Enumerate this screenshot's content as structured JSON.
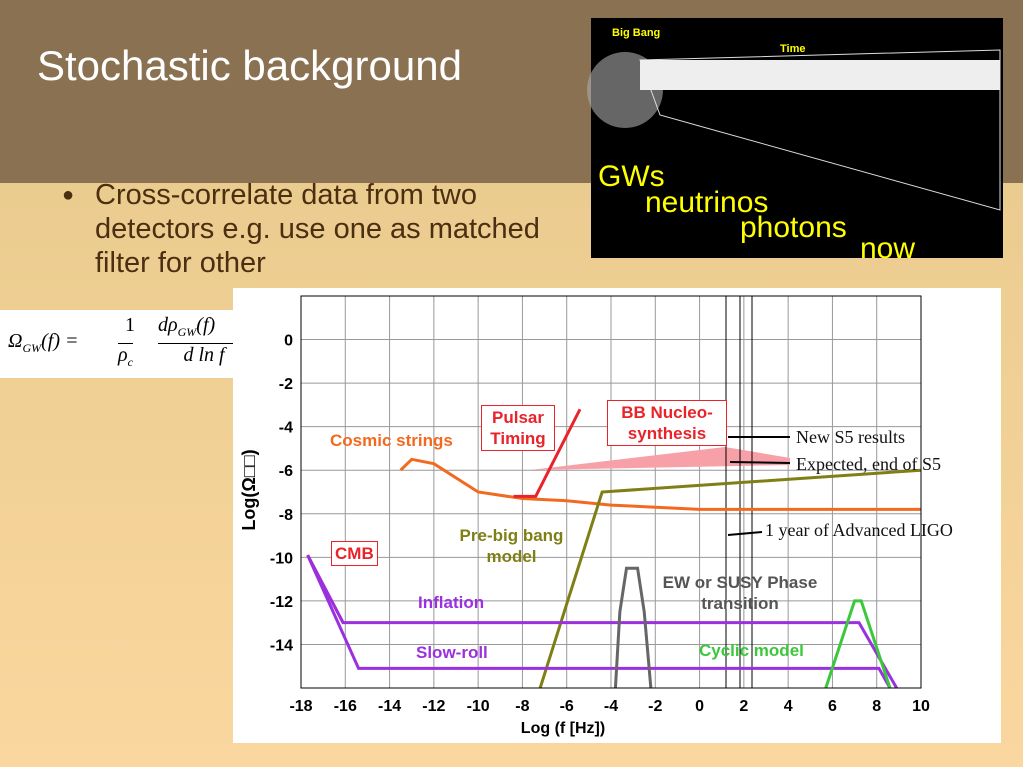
{
  "slide": {
    "title": "Stochastic background",
    "bullet": "Cross-correlate data from two detectors e.g. use one as matched filter for other"
  },
  "figure": {
    "big_bang": "Big Bang",
    "time": "Time",
    "labels": [
      "GWs",
      "neutrinos",
      "photons",
      "now"
    ]
  },
  "chart_data": {
    "type": "line",
    "xlabel": "Log (f [Hz])",
    "ylabel": "Log(Ω□□)",
    "xlim": [
      -18,
      10
    ],
    "ylim": [
      -16,
      2
    ],
    "xticks": [
      -18,
      -16,
      -14,
      -12,
      -10,
      -8,
      -6,
      -4,
      -2,
      0,
      2,
      4,
      6,
      8,
      10
    ],
    "yticks": [
      0,
      -2,
      -4,
      -6,
      -8,
      -10,
      -12,
      -14
    ],
    "grid": true,
    "series": [
      {
        "name": "Cosmic strings",
        "color": "#f26a1f",
        "x": [
          -13.5,
          -13,
          -12,
          -10,
          -8,
          -6,
          -4,
          0,
          10
        ],
        "values": [
          -6,
          -5.5,
          -5.7,
          -7,
          -7.3,
          -7.4,
          -7.6,
          -7.8,
          -7.8
        ]
      },
      {
        "name": "Pulsar Timing",
        "color": "#e8232a",
        "x": [
          -8.4,
          -7.4,
          -5.4
        ],
        "values": [
          -7.2,
          -7.2,
          -3.2
        ]
      },
      {
        "name": "Pre-big bang model",
        "color": "#7f7f16",
        "x": [
          -7.2,
          -4.4,
          10
        ],
        "values": [
          -16,
          -7,
          -6
        ]
      },
      {
        "name": "CMB",
        "color": "#e8232a",
        "x": [
          -17.7,
          -16.1
        ],
        "values": [
          -9.9,
          -13
        ]
      },
      {
        "name": "Inflation",
        "color": "#9b30e0",
        "x": [
          -17.7,
          -16.1,
          7.2,
          8.9
        ],
        "values": [
          -9.9,
          -13,
          -13,
          -16
        ]
      },
      {
        "name": "Slow-roll",
        "color": "#9b30e0",
        "x": [
          -17.7,
          -15.4,
          8.1,
          8.6
        ],
        "values": [
          -9.9,
          -15.1,
          -15.1,
          -16
        ]
      },
      {
        "name": "EW or SUSY Phase transition",
        "color": "#666666",
        "x": [
          -3.8,
          -3.6,
          -3.3,
          -2.8,
          -2.5,
          -2.2
        ],
        "values": [
          -16,
          -12.5,
          -10.5,
          -10.5,
          -12.5,
          -16
        ]
      },
      {
        "name": "Cyclic model",
        "color": "#3cc83c",
        "x": [
          5.7,
          7,
          7.3,
          8.6
        ],
        "values": [
          -16,
          -12,
          -12,
          -16
        ]
      }
    ],
    "annotations": [
      "BB Nucleo-synthesis",
      "New S5 results",
      "Expected, end of S5",
      "1 year of Advanced LIGO"
    ]
  }
}
